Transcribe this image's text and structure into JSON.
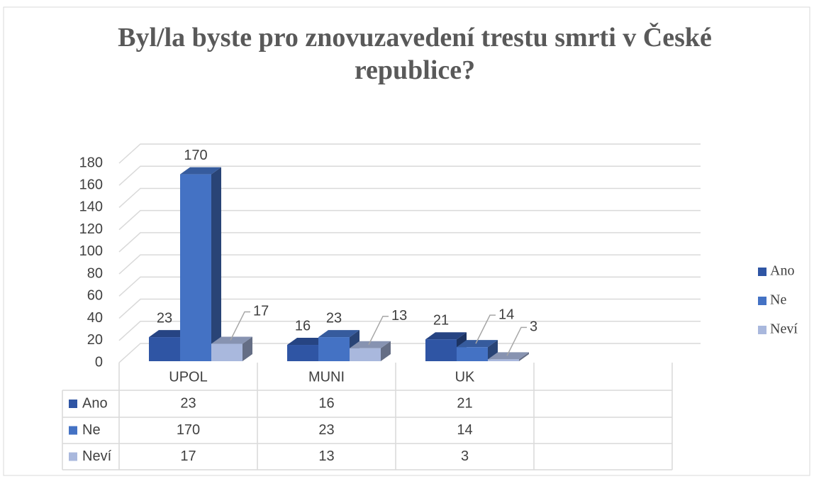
{
  "chart_data": {
    "type": "bar3d",
    "title": "Byl/la byste pro znovuzavedení trestu smrti v České republice?",
    "categories": [
      "UPOL",
      "MUNI",
      "UK",
      null
    ],
    "series": [
      {
        "name": "Ano",
        "color": "#2f55a4",
        "values": [
          23,
          16,
          21,
          null
        ]
      },
      {
        "name": "Ne",
        "color": "#4472c4",
        "values": [
          170,
          23,
          14,
          null
        ]
      },
      {
        "name": "Neví",
        "color": "#a9b8dd",
        "values": [
          17,
          13,
          3,
          null
        ]
      }
    ],
    "ylim": [
      0,
      180
    ],
    "yticks": [
      0,
      20,
      40,
      60,
      80,
      100,
      120,
      140,
      160,
      180
    ],
    "grid": true,
    "legend": "right",
    "data_table": true
  }
}
